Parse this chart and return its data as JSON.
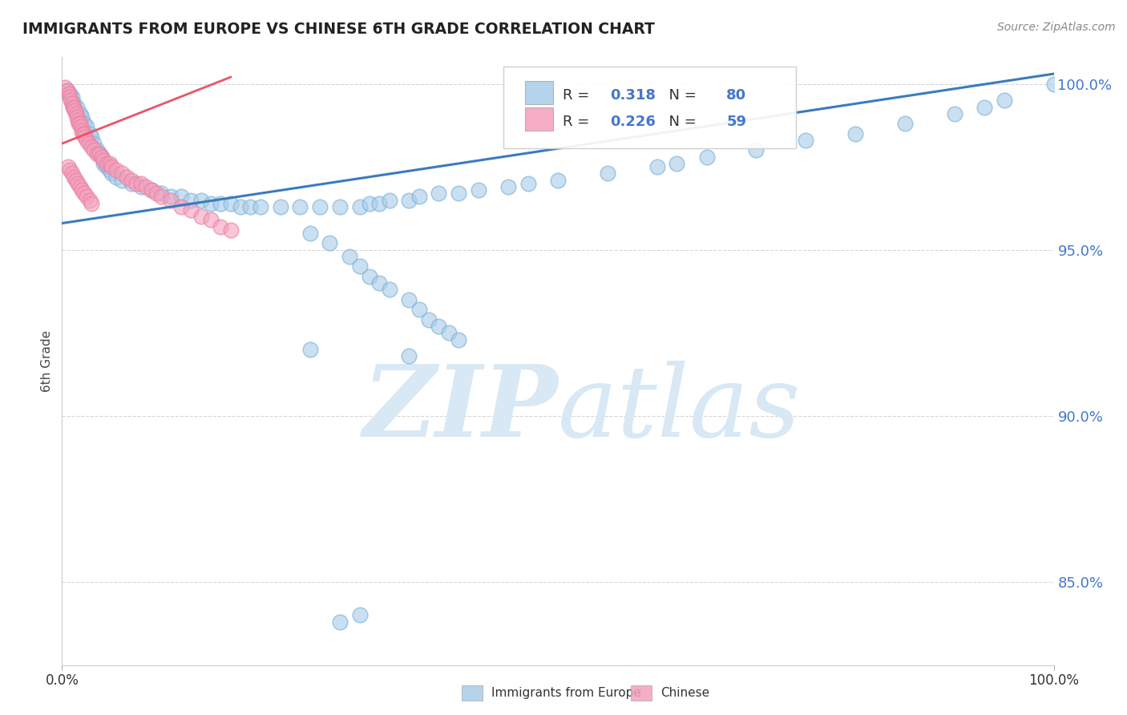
{
  "title": "IMMIGRANTS FROM EUROPE VS CHINESE 6TH GRADE CORRELATION CHART",
  "source_text": "Source: ZipAtlas.com",
  "ylabel": "6th Grade",
  "xlim": [
    0.0,
    1.0
  ],
  "ylim": [
    0.825,
    1.008
  ],
  "yticks": [
    0.85,
    0.9,
    0.95,
    1.0
  ],
  "ytick_labels": [
    "85.0%",
    "90.0%",
    "95.0%",
    "100.0%"
  ],
  "xtick_labels": [
    "0.0%",
    "100.0%"
  ],
  "legend_labels": [
    "Immigrants from Europe",
    "Chinese"
  ],
  "legend_r": [
    "0.318",
    "0.226"
  ],
  "legend_n": [
    "80",
    "59"
  ],
  "blue_color": "#a8cce8",
  "pink_color": "#f4a0bc",
  "blue_line_color": "#3a7bbf",
  "pink_line_color": "#e8546a",
  "blue_edge_color": "#7ab0d8",
  "pink_edge_color": "#e880a0",
  "background_color": "#ffffff",
  "grid_color": "#cccccc",
  "ytick_color": "#4477cc",
  "blue_scatter_x": [
    0.005,
    0.008,
    0.01,
    0.012,
    0.015,
    0.018,
    0.02,
    0.022,
    0.025,
    0.028,
    0.03,
    0.032,
    0.035,
    0.038,
    0.04,
    0.042,
    0.045,
    0.048,
    0.05,
    0.055,
    0.06,
    0.07,
    0.08,
    0.09,
    0.1,
    0.11,
    0.12,
    0.13,
    0.14,
    0.15,
    0.16,
    0.17,
    0.18,
    0.19,
    0.2,
    0.22,
    0.24,
    0.26,
    0.28,
    0.3,
    0.31,
    0.32,
    0.33,
    0.35,
    0.36,
    0.38,
    0.4,
    0.42,
    0.45,
    0.47,
    0.5,
    0.55,
    0.6,
    0.62,
    0.65,
    0.7,
    0.75,
    0.8,
    0.85,
    0.9,
    0.93,
    0.95,
    1.0,
    0.25,
    0.27,
    0.29,
    0.3,
    0.31,
    0.32,
    0.33,
    0.35,
    0.36,
    0.37,
    0.38,
    0.39,
    0.4,
    0.25,
    0.35,
    0.3,
    0.28
  ],
  "blue_scatter_y": [
    0.998,
    0.997,
    0.996,
    0.994,
    0.993,
    0.991,
    0.99,
    0.988,
    0.987,
    0.985,
    0.984,
    0.982,
    0.98,
    0.979,
    0.978,
    0.976,
    0.975,
    0.974,
    0.973,
    0.972,
    0.971,
    0.97,
    0.969,
    0.968,
    0.967,
    0.966,
    0.966,
    0.965,
    0.965,
    0.964,
    0.964,
    0.964,
    0.963,
    0.963,
    0.963,
    0.963,
    0.963,
    0.963,
    0.963,
    0.963,
    0.964,
    0.964,
    0.965,
    0.965,
    0.966,
    0.967,
    0.967,
    0.968,
    0.969,
    0.97,
    0.971,
    0.973,
    0.975,
    0.976,
    0.978,
    0.98,
    0.983,
    0.985,
    0.988,
    0.991,
    0.993,
    0.995,
    1.0,
    0.955,
    0.952,
    0.948,
    0.945,
    0.942,
    0.94,
    0.938,
    0.935,
    0.932,
    0.929,
    0.927,
    0.925,
    0.923,
    0.92,
    0.918,
    0.84,
    0.838
  ],
  "pink_scatter_x": [
    0.003,
    0.005,
    0.007,
    0.008,
    0.009,
    0.01,
    0.011,
    0.012,
    0.013,
    0.014,
    0.015,
    0.016,
    0.017,
    0.018,
    0.019,
    0.02,
    0.021,
    0.022,
    0.023,
    0.025,
    0.027,
    0.03,
    0.032,
    0.035,
    0.038,
    0.04,
    0.042,
    0.045,
    0.048,
    0.05,
    0.055,
    0.06,
    0.065,
    0.07,
    0.075,
    0.08,
    0.085,
    0.09,
    0.095,
    0.1,
    0.11,
    0.12,
    0.13,
    0.14,
    0.15,
    0.16,
    0.17,
    0.006,
    0.008,
    0.01,
    0.012,
    0.014,
    0.016,
    0.018,
    0.02,
    0.022,
    0.025,
    0.028,
    0.03
  ],
  "pink_scatter_y": [
    0.999,
    0.998,
    0.997,
    0.996,
    0.995,
    0.994,
    0.993,
    0.993,
    0.992,
    0.991,
    0.99,
    0.989,
    0.988,
    0.988,
    0.987,
    0.986,
    0.985,
    0.985,
    0.984,
    0.983,
    0.982,
    0.981,
    0.98,
    0.979,
    0.979,
    0.978,
    0.977,
    0.976,
    0.976,
    0.975,
    0.974,
    0.973,
    0.972,
    0.971,
    0.97,
    0.97,
    0.969,
    0.968,
    0.967,
    0.966,
    0.965,
    0.963,
    0.962,
    0.96,
    0.959,
    0.957,
    0.956,
    0.975,
    0.974,
    0.973,
    0.972,
    0.971,
    0.97,
    0.969,
    0.968,
    0.967,
    0.966,
    0.965,
    0.964
  ],
  "blue_trend_x": [
    0.0,
    1.0
  ],
  "blue_trend_y": [
    0.958,
    1.003
  ],
  "pink_trend_x": [
    0.0,
    0.17
  ],
  "pink_trend_y": [
    0.982,
    1.002
  ],
  "watermark_zip_color": "#d8e8f4",
  "watermark_atlas_color": "#d8e8f4"
}
